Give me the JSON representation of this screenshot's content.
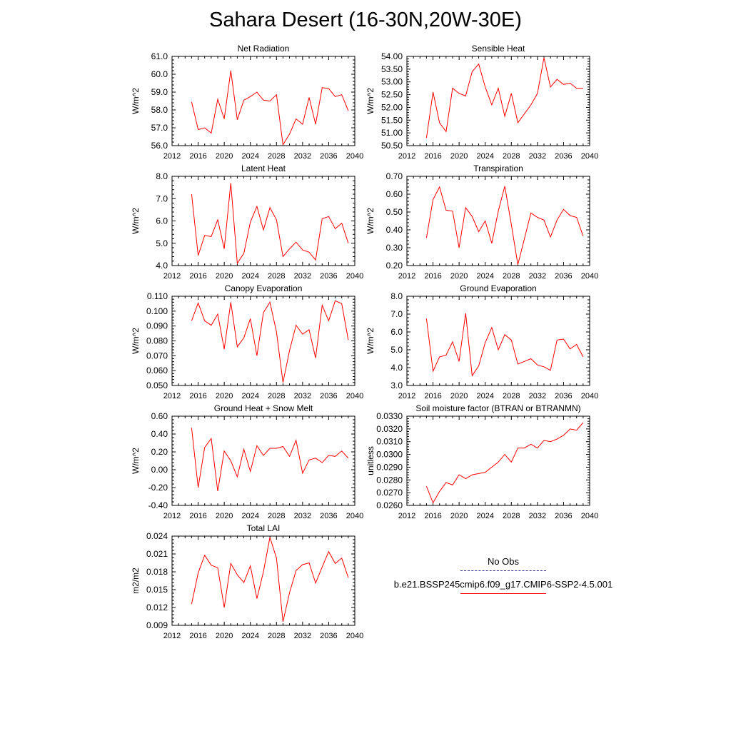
{
  "figure_title": "Sahara Desert (16-30N,20W-30E)",
  "legend": {
    "entries": [
      {
        "label": "No Obs",
        "color": "#2a2a8a",
        "style": "dashed"
      },
      {
        "label": "b.e21.BSSP245cmip6.f09_g17.CMIP6-SSP2-4.5.001",
        "color": "#ff0000",
        "style": "solid"
      }
    ]
  },
  "chart_data": [
    {
      "type": "line",
      "title": "Net Radiation",
      "ylabel": "W/m^2",
      "xlim": [
        2012,
        2040
      ],
      "xticks": [
        "2012",
        "2016",
        "2020",
        "2024",
        "2028",
        "2032",
        "2036",
        "2040"
      ],
      "ylim": [
        56.0,
        61.0
      ],
      "yticks": [
        "56.0",
        "57.0",
        "58.0",
        "59.0",
        "60.0",
        "61.0"
      ],
      "series": [
        {
          "color": "#ff0000",
          "x": [
            2015,
            2016,
            2017,
            2018,
            2019,
            2020,
            2021,
            2022,
            2023,
            2024,
            2025,
            2026,
            2027,
            2028,
            2029,
            2030,
            2031,
            2032,
            2033,
            2034,
            2035,
            2036,
            2037,
            2038,
            2039
          ],
          "y": [
            58.45,
            56.9,
            57.0,
            56.7,
            58.6,
            57.5,
            60.2,
            57.45,
            58.55,
            58.75,
            59.0,
            58.55,
            58.5,
            58.85,
            56.05,
            56.65,
            57.5,
            57.2,
            58.7,
            57.2,
            59.25,
            59.2,
            58.75,
            58.85,
            57.95
          ]
        }
      ]
    },
    {
      "type": "line",
      "title": "Sensible Heat",
      "ylabel": "W/m^2",
      "xlim": [
        2012,
        2040
      ],
      "xticks": [
        "2012",
        "2016",
        "2020",
        "2024",
        "2028",
        "2032",
        "2036",
        "2040"
      ],
      "ylim": [
        50.5,
        54.0
      ],
      "yticks": [
        "50.50",
        "51.00",
        "51.50",
        "52.00",
        "52.50",
        "53.00",
        "53.50",
        "54.00"
      ],
      "series": [
        {
          "color": "#ff0000",
          "x": [
            2015,
            2016,
            2017,
            2018,
            2019,
            2020,
            2021,
            2022,
            2023,
            2024,
            2025,
            2026,
            2027,
            2028,
            2029,
            2030,
            2031,
            2032,
            2033,
            2034,
            2035,
            2036,
            2037,
            2038,
            2039
          ],
          "y": [
            50.8,
            52.6,
            51.4,
            51.05,
            52.75,
            52.55,
            52.45,
            53.4,
            53.7,
            52.8,
            52.1,
            52.75,
            51.65,
            52.55,
            51.4,
            51.75,
            52.1,
            52.55,
            53.95,
            52.8,
            53.1,
            52.9,
            52.95,
            52.75,
            52.75
          ]
        }
      ]
    },
    {
      "type": "line",
      "title": "Latent Heat",
      "ylabel": "W/m^2",
      "xlim": [
        2012,
        2040
      ],
      "xticks": [
        "2012",
        "2016",
        "2020",
        "2024",
        "2028",
        "2032",
        "2036",
        "2040"
      ],
      "ylim": [
        4.0,
        8.0
      ],
      "yticks": [
        "4.0",
        "5.0",
        "6.0",
        "7.0",
        "8.0"
      ],
      "series": [
        {
          "color": "#ff0000",
          "x": [
            2015,
            2016,
            2017,
            2018,
            2019,
            2020,
            2021,
            2022,
            2023,
            2024,
            2025,
            2026,
            2027,
            2028,
            2029,
            2030,
            2031,
            2032,
            2033,
            2034,
            2035,
            2036,
            2037,
            2038,
            2039
          ],
          "y": [
            7.2,
            4.45,
            5.35,
            5.3,
            6.05,
            4.75,
            7.7,
            4.1,
            4.55,
            5.95,
            6.65,
            5.6,
            6.6,
            6.05,
            4.4,
            4.75,
            5.05,
            4.7,
            4.6,
            4.25,
            6.1,
            6.2,
            5.65,
            5.9,
            5.0
          ]
        }
      ]
    },
    {
      "type": "line",
      "title": "Transpiration",
      "ylabel": "W/m^2",
      "xlim": [
        2012,
        2040
      ],
      "xticks": [
        "2012",
        "2016",
        "2020",
        "2024",
        "2028",
        "2032",
        "2036",
        "2040"
      ],
      "ylim": [
        0.2,
        0.7
      ],
      "yticks": [
        "0.20",
        "0.30",
        "0.40",
        "0.50",
        "0.60",
        "0.70"
      ],
      "series": [
        {
          "color": "#ff0000",
          "x": [
            2015,
            2016,
            2017,
            2018,
            2019,
            2020,
            2021,
            2022,
            2023,
            2024,
            2025,
            2026,
            2027,
            2028,
            2029,
            2030,
            2031,
            2032,
            2033,
            2034,
            2035,
            2036,
            2037,
            2038,
            2039
          ],
          "y": [
            0.355,
            0.57,
            0.64,
            0.51,
            0.505,
            0.3,
            0.525,
            0.475,
            0.39,
            0.45,
            0.325,
            0.505,
            0.645,
            0.43,
            0.205,
            0.35,
            0.495,
            0.47,
            0.455,
            0.36,
            0.455,
            0.515,
            0.48,
            0.47,
            0.365
          ]
        }
      ]
    },
    {
      "type": "line",
      "title": "Canopy Evaporation",
      "ylabel": "W/m^2",
      "xlim": [
        2012,
        2040
      ],
      "xticks": [
        "2012",
        "2016",
        "2020",
        "2024",
        "2028",
        "2032",
        "2036",
        "2040"
      ],
      "ylim": [
        0.05,
        0.11
      ],
      "yticks": [
        "0.050",
        "0.060",
        "0.070",
        "0.080",
        "0.090",
        "0.100",
        "0.110"
      ],
      "series": [
        {
          "color": "#ff0000",
          "x": [
            2015,
            2016,
            2017,
            2018,
            2019,
            2020,
            2021,
            2022,
            2023,
            2024,
            2025,
            2026,
            2027,
            2028,
            2029,
            2030,
            2031,
            2032,
            2033,
            2034,
            2035,
            2036,
            2037,
            2038,
            2039
          ],
          "y": [
            0.0935,
            0.1055,
            0.0935,
            0.0905,
            0.098,
            0.0745,
            0.106,
            0.076,
            0.082,
            0.095,
            0.07,
            0.099,
            0.106,
            0.086,
            0.052,
            0.0735,
            0.0905,
            0.0845,
            0.0875,
            0.0685,
            0.104,
            0.0935,
            0.107,
            0.105,
            0.0805
          ]
        }
      ]
    },
    {
      "type": "line",
      "title": "Ground Evaporation",
      "ylabel": "W/m^2",
      "xlim": [
        2012,
        2040
      ],
      "xticks": [
        "2012",
        "2016",
        "2020",
        "2024",
        "2028",
        "2032",
        "2036",
        "2040"
      ],
      "ylim": [
        3.0,
        8.0
      ],
      "yticks": [
        "3.0",
        "4.0",
        "5.0",
        "6.0",
        "7.0",
        "8.0"
      ],
      "series": [
        {
          "color": "#ff0000",
          "x": [
            2015,
            2016,
            2017,
            2018,
            2019,
            2020,
            2021,
            2022,
            2023,
            2024,
            2025,
            2026,
            2027,
            2028,
            2029,
            2030,
            2031,
            2032,
            2033,
            2034,
            2035,
            2036,
            2037,
            2038,
            2039
          ],
          "y": [
            6.75,
            3.8,
            4.6,
            4.7,
            5.45,
            4.35,
            7.05,
            3.55,
            4.1,
            5.4,
            6.25,
            5.0,
            5.85,
            5.55,
            4.2,
            4.35,
            4.5,
            4.15,
            4.05,
            3.85,
            5.55,
            5.6,
            5.05,
            5.3,
            4.6
          ]
        }
      ]
    },
    {
      "type": "line",
      "title": "Ground Heat + Snow Melt",
      "ylabel": "W/m^2",
      "xlim": [
        2012,
        2040
      ],
      "xticks": [
        "2012",
        "2016",
        "2020",
        "2024",
        "2028",
        "2032",
        "2036",
        "2040"
      ],
      "ylim": [
        -0.4,
        0.6
      ],
      "yticks": [
        "-0.40",
        "-0.20",
        "0.00",
        "0.20",
        "0.40",
        "0.60"
      ],
      "series": [
        {
          "color": "#ff0000",
          "x": [
            2015,
            2016,
            2017,
            2018,
            2019,
            2020,
            2021,
            2022,
            2023,
            2024,
            2025,
            2026,
            2027,
            2028,
            2029,
            2030,
            2031,
            2032,
            2033,
            2034,
            2035,
            2036,
            2037,
            2038,
            2039
          ],
          "y": [
            0.47,
            -0.2,
            0.25,
            0.35,
            -0.24,
            0.21,
            0.1,
            -0.08,
            0.23,
            -0.02,
            0.27,
            0.16,
            0.24,
            0.24,
            0.26,
            0.15,
            0.33,
            -0.04,
            0.11,
            0.13,
            0.08,
            0.16,
            0.15,
            0.21,
            0.13
          ]
        }
      ]
    },
    {
      "type": "line",
      "title": "Soil moisture factor (BTRAN or BTRANMN)",
      "ylabel": "unitless",
      "xlim": [
        2012,
        2040
      ],
      "xticks": [
        "2012",
        "2016",
        "2020",
        "2024",
        "2028",
        "2032",
        "2036",
        "2040"
      ],
      "ylim": [
        0.026,
        0.033
      ],
      "yticks": [
        "0.0260",
        "0.0270",
        "0.0280",
        "0.0290",
        "0.0300",
        "0.0310",
        "0.0320",
        "0.0330"
      ],
      "series": [
        {
          "color": "#ff0000",
          "x": [
            2015,
            2016,
            2017,
            2018,
            2019,
            2020,
            2021,
            2022,
            2023,
            2024,
            2025,
            2026,
            2027,
            2028,
            2029,
            2030,
            2031,
            2032,
            2033,
            2034,
            2035,
            2036,
            2037,
            2038,
            2039
          ],
          "y": [
            0.0275,
            0.0262,
            0.0271,
            0.0278,
            0.0276,
            0.0284,
            0.0281,
            0.0284,
            0.0285,
            0.0286,
            0.029,
            0.0294,
            0.03,
            0.0294,
            0.0305,
            0.0305,
            0.0308,
            0.0305,
            0.0311,
            0.031,
            0.0312,
            0.0315,
            0.032,
            0.0319,
            0.0325
          ]
        }
      ]
    },
    {
      "type": "line",
      "title": "Total LAI",
      "ylabel": "m2/m2",
      "xlim": [
        2012,
        2040
      ],
      "xticks": [
        "2012",
        "2016",
        "2020",
        "2024",
        "2028",
        "2032",
        "2036",
        "2040"
      ],
      "ylim": [
        0.009,
        0.024
      ],
      "yticks": [
        "0.009",
        "0.012",
        "0.015",
        "0.018",
        "0.021",
        "0.024"
      ],
      "series": [
        {
          "color": "#ff0000",
          "x": [
            2015,
            2016,
            2017,
            2018,
            2019,
            2020,
            2021,
            2022,
            2023,
            2024,
            2025,
            2026,
            2027,
            2028,
            2029,
            2030,
            2031,
            2032,
            2033,
            2034,
            2035,
            2036,
            2037,
            2038,
            2039
          ],
          "y": [
            0.0126,
            0.0178,
            0.0208,
            0.0191,
            0.0187,
            0.012,
            0.0194,
            0.0175,
            0.0162,
            0.019,
            0.0135,
            0.018,
            0.0238,
            0.0203,
            0.0096,
            0.0145,
            0.0182,
            0.0192,
            0.0195,
            0.0161,
            0.0188,
            0.0214,
            0.0194,
            0.0203,
            0.017
          ]
        }
      ]
    }
  ]
}
